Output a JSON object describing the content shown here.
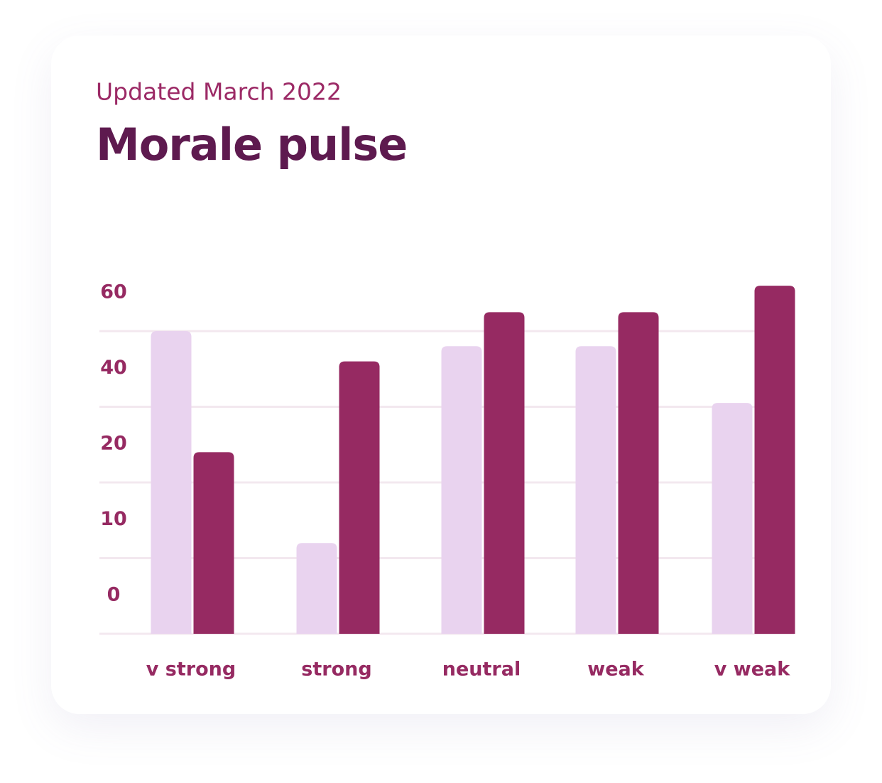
{
  "chart_data": {
    "type": "bar",
    "subtitle": "Updated March 2022",
    "title": "Morale pulse",
    "categories": [
      "v strong",
      "strong",
      "neutral",
      "weak",
      "v weak"
    ],
    "series": [
      {
        "color": "#e9d3ef",
        "values": [
          60,
          12,
          56,
          56,
          41
        ]
      },
      {
        "color": "#962a62",
        "values": [
          28,
          52,
          65,
          65,
          72
        ]
      }
    ],
    "ylim": [
      0,
      72
    ],
    "yticks": [
      0,
      10,
      20,
      40,
      60
    ],
    "grid": true
  }
}
